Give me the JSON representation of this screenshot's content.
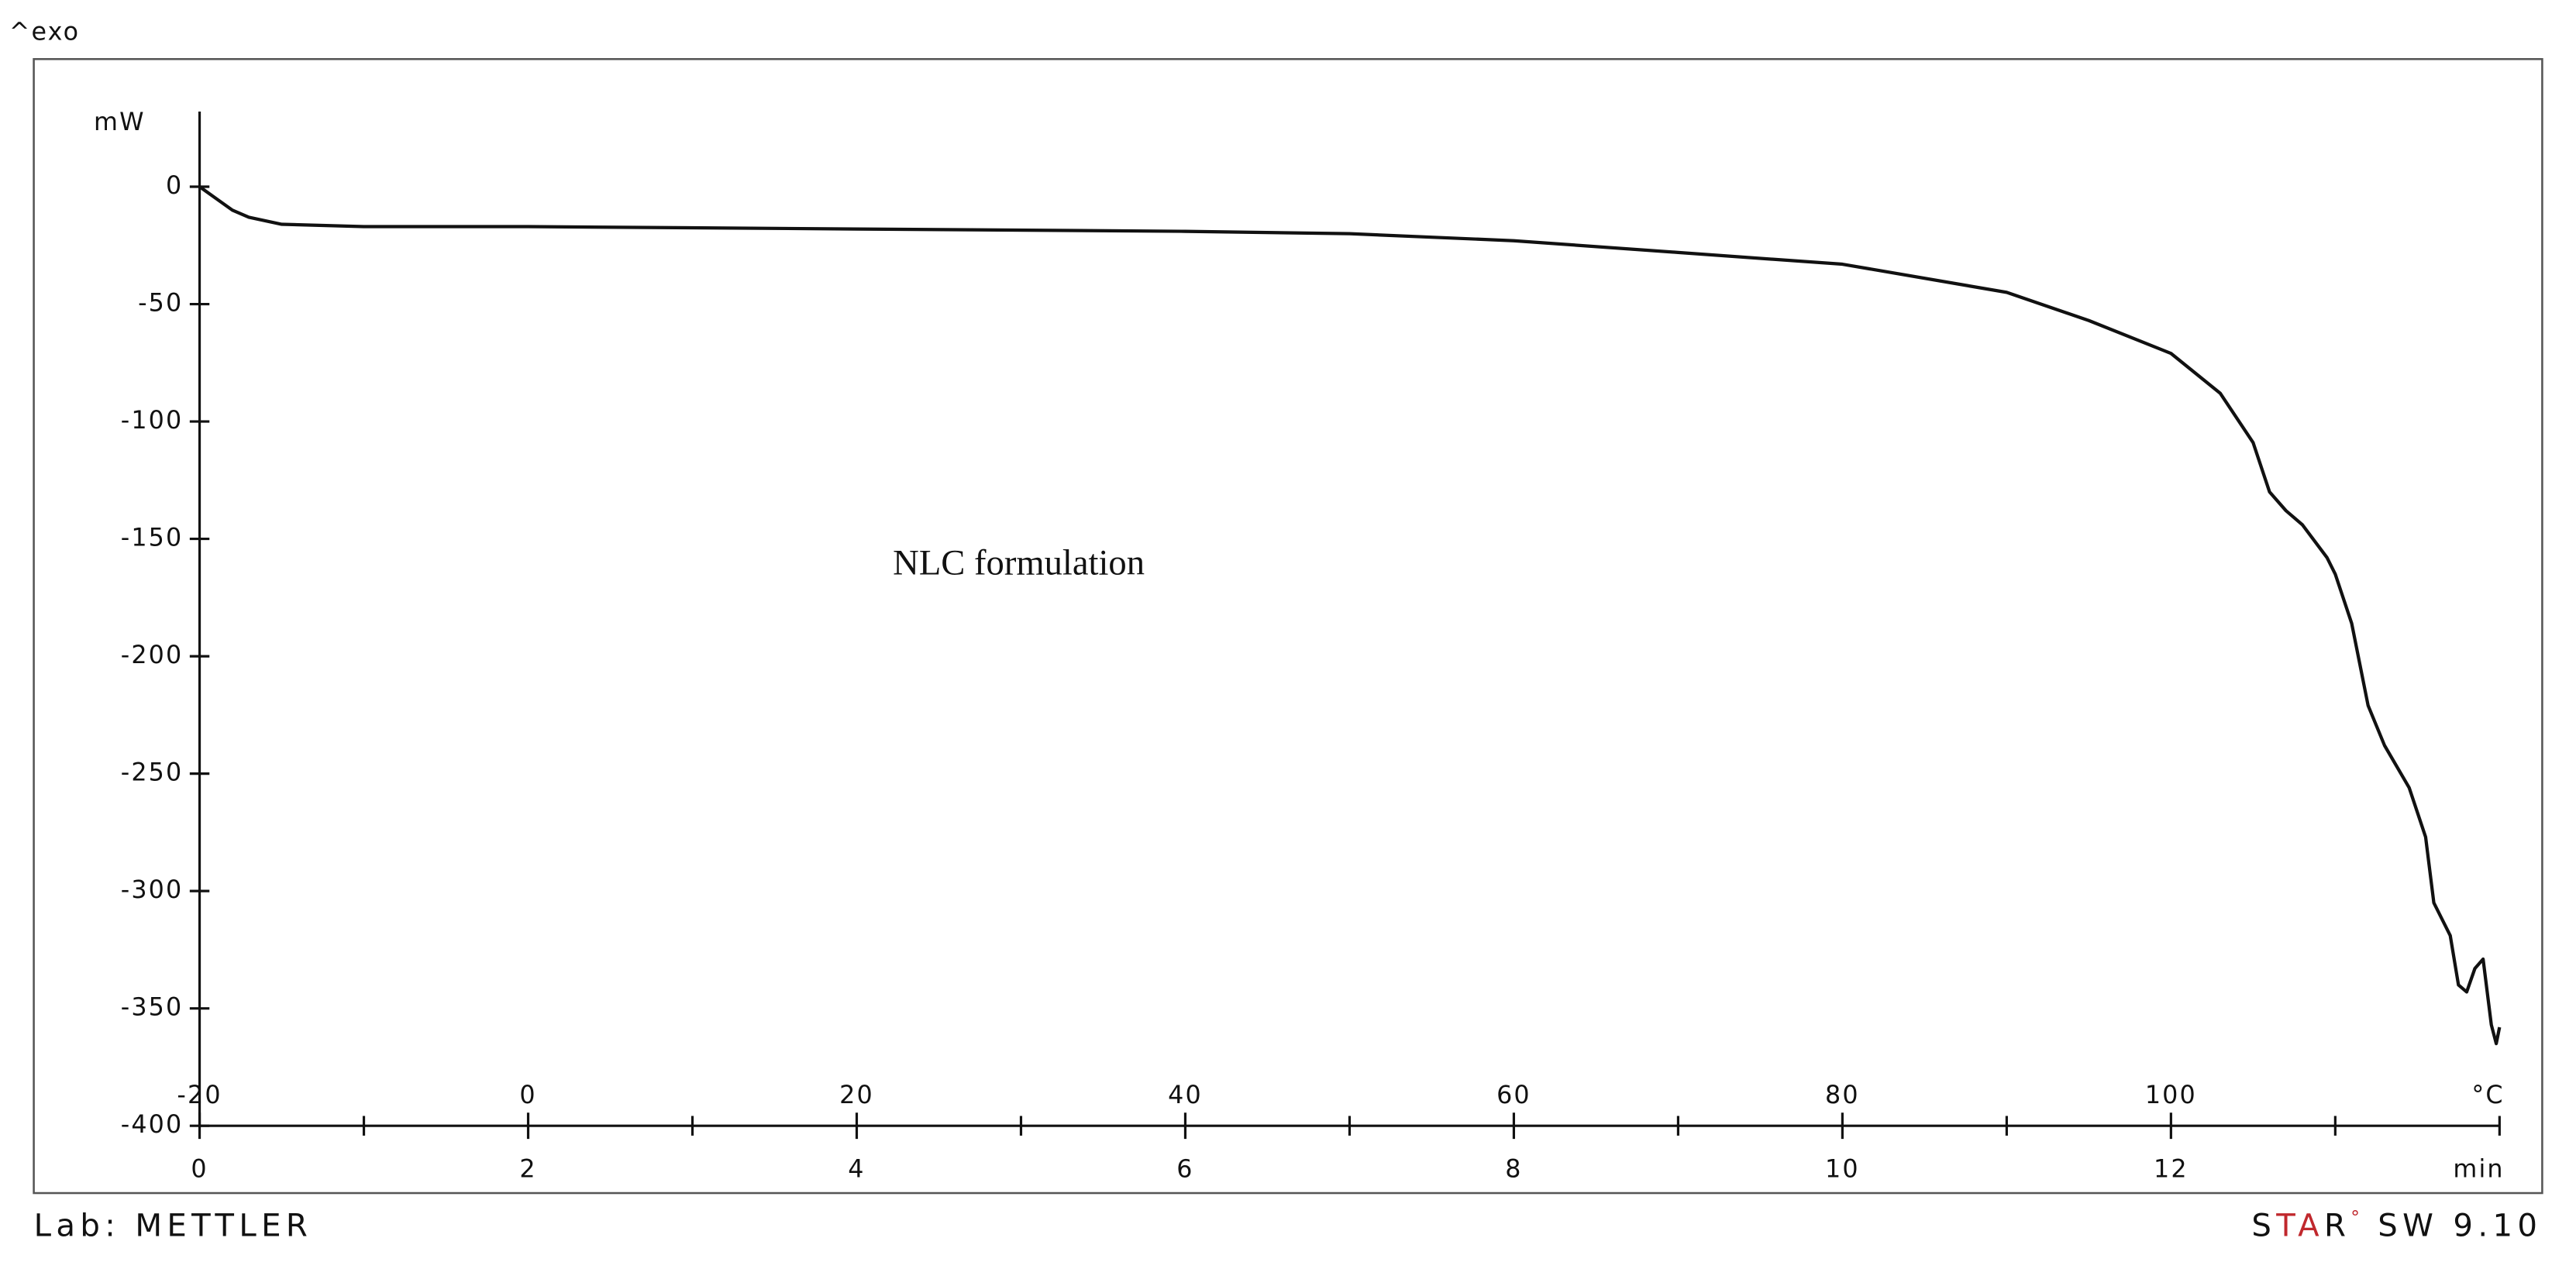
{
  "chart_data": {
    "type": "line",
    "corner_label": "^exo",
    "y_label": "mW",
    "annotation": "NLC formulation",
    "x_label": "min",
    "x2_label": "°C",
    "footer_left": "Lab: METTLER",
    "footer_right": [
      "S",
      "TA",
      "R",
      "°",
      "SW 9.10"
    ],
    "xlim": [
      0,
      14
    ],
    "xticks": [
      0,
      2,
      4,
      6,
      8,
      10,
      12
    ],
    "xminorticks": [
      1,
      3,
      5,
      7,
      9,
      11,
      13,
      14
    ],
    "x2lim": [
      -20,
      120
    ],
    "x2ticks": [
      -20,
      0,
      20,
      40,
      60,
      80,
      100
    ],
    "ylim": [
      -400,
      32
    ],
    "yticks": [
      -400,
      -350,
      -300,
      -250,
      -200,
      -150,
      -100,
      -50,
      0
    ],
    "grid": false,
    "series": [
      {
        "name": "NLC formulation",
        "color": "#111111",
        "x": [
          0,
          0.1,
          0.2,
          0.3,
          0.5,
          1,
          2,
          4,
          6,
          7,
          8,
          9,
          10,
          11,
          11.5,
          12,
          12.3,
          12.5,
          12.6,
          12.7,
          12.8,
          12.95,
          13,
          13.1,
          13.2,
          13.3,
          13.45,
          13.55,
          13.6,
          13.7,
          13.75,
          13.8,
          13.85,
          13.9,
          13.95,
          13.98,
          14
        ],
        "values": [
          0,
          -5,
          -10,
          -13,
          -16,
          -17,
          -17,
          -18,
          -19,
          -20,
          -23,
          -28,
          -33,
          -45,
          -57,
          -71,
          -88,
          -109,
          -130,
          -138,
          -144,
          -158,
          -165,
          -186,
          -221,
          -238,
          -256,
          -277,
          -305,
          -319,
          -340,
          -343,
          -333,
          -329,
          -357,
          -365,
          -358
        ]
      }
    ]
  }
}
